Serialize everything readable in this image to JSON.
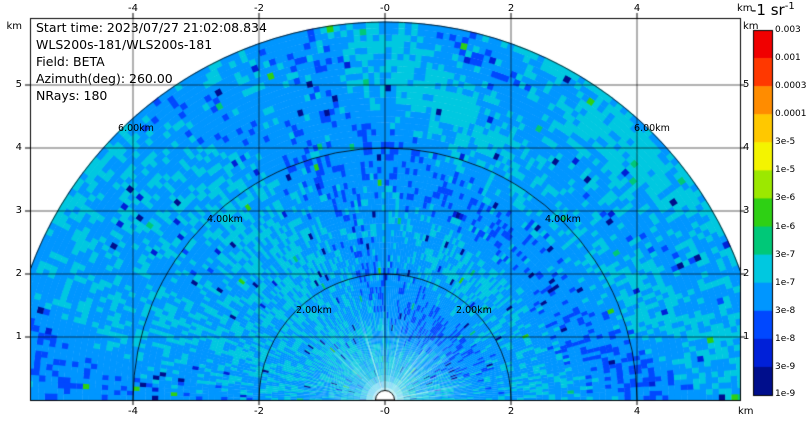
{
  "annotations": {
    "start_time": "Start time: 2023/07/27 21:02:08.834",
    "instrument": "WLS200s-181/WLS200s-181",
    "field": "Field: BETA",
    "azimuth": "Azimuth(deg): 260.00",
    "nrays": "NRays: 180"
  },
  "axes": {
    "top_ticks": [
      "-4",
      "-2",
      "-0",
      "2",
      "4"
    ],
    "bottom_ticks": [
      "-4",
      "-2",
      "-0",
      "2",
      "4"
    ],
    "left_ticks": [
      "5",
      "4",
      "3",
      "2",
      "1"
    ],
    "right_ticks": [
      "5",
      "4",
      "3",
      "2",
      "1"
    ],
    "unit": "km"
  },
  "colorbar_labels": {
    "title": "-1 sr",
    "title_sup": "-1",
    "ticks": [
      "0.003",
      "0.001",
      "0.0003",
      "0.0001",
      "3e-5",
      "1e-5",
      "3e-6",
      "1e-6",
      "3e-7",
      "1e-7",
      "3e-8",
      "1e-8",
      "3e-9",
      "1e-9"
    ]
  },
  "rings": [
    {
      "label": "2.00km"
    },
    {
      "label": "4.00km"
    },
    {
      "label": "6.00km"
    }
  ],
  "chart_data": {
    "type": "heatmap",
    "scan_type": "RHI",
    "field": "BETA",
    "start_time": "2023/07/27 21:02:08.834",
    "instrument": "WLS200s-181/WLS200s-181",
    "azimuth_deg": 260.0,
    "n_rays": 180,
    "max_range_km": 6.0,
    "x_ticks_km": [
      -4,
      -2,
      0,
      2,
      4
    ],
    "y_ticks_km": [
      1,
      2,
      3,
      4,
      5
    ],
    "x_range_km": [
      -5.63,
      5.63
    ],
    "y_range_km": [
      0,
      6.06
    ],
    "range_rings_km": [
      2,
      4,
      6
    ],
    "units_label": "-1 sr",
    "grid": true,
    "colorbar": {
      "levels": [
        0.003,
        0.001,
        0.0003,
        0.0001,
        3e-05,
        1e-05,
        3e-06,
        1e-06,
        3e-07,
        1e-07,
        3e-08,
        1e-08,
        3e-09,
        1e-09
      ],
      "colors": [
        "#f00000",
        "#ff3800",
        "#ff8c00",
        "#ffc800",
        "#f4f400",
        "#9ce800",
        "#2ed014",
        "#00c878",
        "#00c8e0",
        "#0096ff",
        "#0048ff",
        "#0020d8",
        "#000e8c"
      ]
    },
    "value_model": {
      "description": "stochastic backscatter field; dominant values 3e-8 to 3e-7 (blue/cyan), bright whitish streaks within ~1.5 km of origin, white saturated core at origin, sparse dark (~3e-9) and green (~1e-6) speckles",
      "base_log10": -7.15,
      "patch_amplitude_log10": 0.42,
      "cell_noise_log10": 0.33,
      "near_field_enhancement_km": 1.45,
      "dark_speck_prob": 0.013,
      "bright_speck_prob": 0.004,
      "gate_km": 0.1,
      "seed": 20230727
    }
  }
}
